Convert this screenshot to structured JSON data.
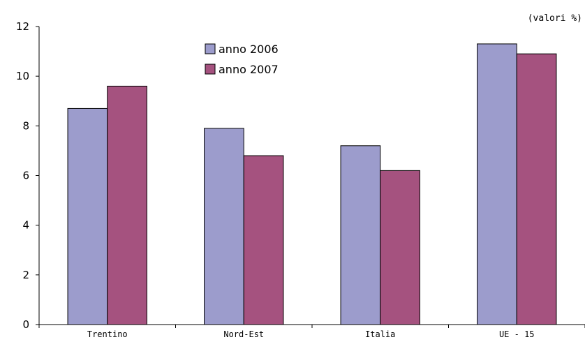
{
  "chart_data": {
    "type": "bar",
    "unit_note": "(valori %)",
    "categories": [
      "Trentino",
      "Nord-Est",
      "Italia",
      "UE - 15"
    ],
    "series": [
      {
        "name": "anno 2006",
        "values": [
          8.7,
          7.9,
          7.2,
          11.3
        ],
        "color": "#9c9ccc"
      },
      {
        "name": "anno 2007",
        "values": [
          9.6,
          6.8,
          6.2,
          10.9
        ],
        "color": "#a5527f"
      }
    ],
    "ylim": [
      0,
      12
    ],
    "yticks": [
      0,
      2,
      4,
      6,
      8,
      10,
      12
    ],
    "title": "",
    "xlabel": "",
    "ylabel": "",
    "grid": false,
    "legend_position": "top-center"
  }
}
